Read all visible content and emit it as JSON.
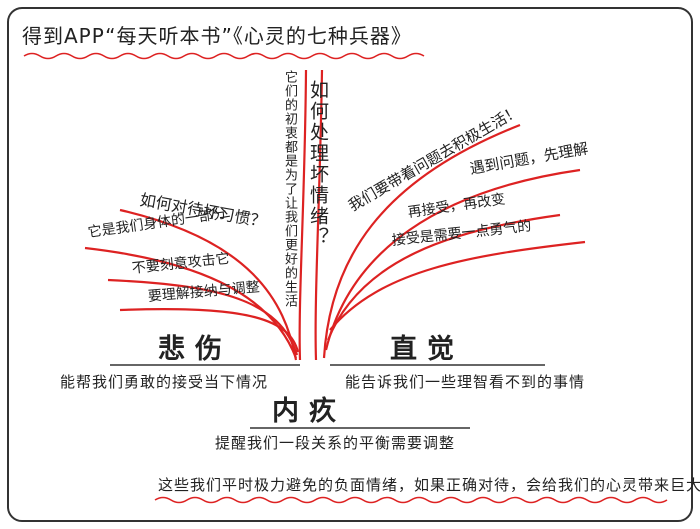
{
  "header": {
    "title": "得到APP“每天听本书”《心灵的七种兵器》"
  },
  "center": {
    "question": "如何处理坏情绪？",
    "aim": "它们的初衷都是为了让我们更好的生活"
  },
  "left": {
    "branches": [
      "如何对待坏习惯？",
      "它是我们身体的一部分",
      "不要刻意攻击它",
      "要理解接纳与调整"
    ]
  },
  "right": {
    "branches": [
      "我们要带着问题去积极生活！",
      "遇到问题，先理解",
      "再接受，再改变",
      "接受是需要一点勇气的"
    ]
  },
  "emotions": [
    {
      "name": "悲伤",
      "description": "能帮我们勇敢的接受当下情况"
    },
    {
      "name": "直觉",
      "description": "能告诉我们一些理智看不到的事情"
    },
    {
      "name": "内疚",
      "description": "提醒我们一段关系的平衡需要调整"
    }
  ],
  "footer": "这些我们平时极力避免的负面情绪，如果正确对待，会给我们的心灵带来巨大好处！"
}
